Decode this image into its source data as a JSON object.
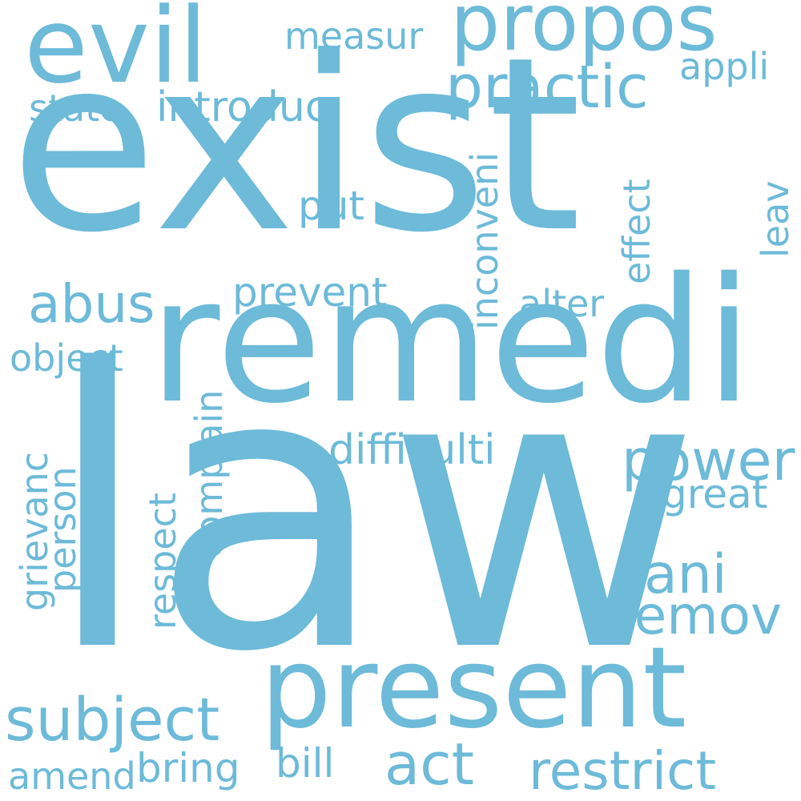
{
  "word_color": "#6dbad9",
  "background": "#ffffff",
  "words": {
    "exist": "exist",
    "law": "law",
    "remedi": "remedi",
    "present": "present",
    "evil": "evil",
    "propos": "propos",
    "practic": "practic",
    "measur": "measur",
    "appli": "appli",
    "state": "state",
    "introduc": "introduc",
    "inconveni": "inconveni",
    "effect": "effect",
    "leav": "leav",
    "put": "put",
    "abus": "abus",
    "prevent": "prevent",
    "alter": "alter",
    "object": "object",
    "complain": "complain",
    "grievanc": "grievanc",
    "person": "person",
    "respect": "respect",
    "difficulti": "difficulti",
    "power": "power",
    "great": "great",
    "ani": "ani",
    "remov": "remov",
    "subject": "subject",
    "act": "act",
    "restrict": "restrict",
    "amend": "amend",
    "bring": "bring",
    "bill": "bill"
  }
}
